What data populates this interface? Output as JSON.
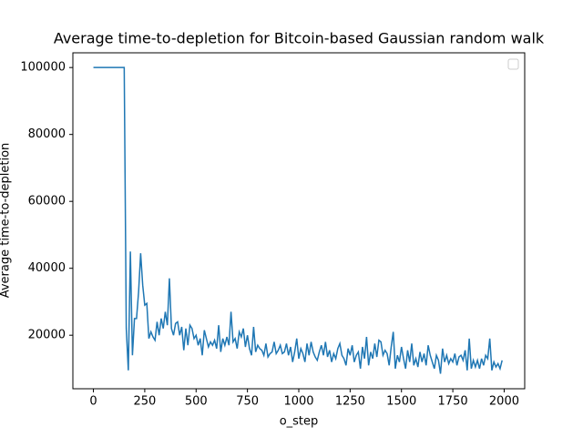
{
  "chart_data": {
    "type": "line",
    "title": "Average time-to-depletion for Bitcoin-based Gaussian random walk",
    "x_label": "o_step",
    "y_label": "Average time-to-depletion",
    "x": [
      0,
      10,
      20,
      30,
      40,
      50,
      60,
      70,
      80,
      90,
      100,
      110,
      120,
      130,
      140,
      150,
      160,
      170,
      180,
      190,
      200,
      210,
      220,
      230,
      240,
      250,
      260,
      270,
      280,
      290,
      300,
      310,
      320,
      330,
      340,
      350,
      360,
      370,
      380,
      390,
      400,
      410,
      420,
      430,
      440,
      450,
      460,
      470,
      480,
      490,
      500,
      510,
      520,
      530,
      540,
      550,
      560,
      570,
      580,
      590,
      600,
      610,
      620,
      630,
      640,
      650,
      660,
      670,
      680,
      690,
      700,
      710,
      720,
      730,
      740,
      750,
      760,
      770,
      780,
      790,
      800,
      810,
      820,
      830,
      840,
      850,
      860,
      870,
      880,
      890,
      900,
      910,
      920,
      930,
      940,
      950,
      960,
      970,
      980,
      990,
      1000,
      1010,
      1020,
      1030,
      1040,
      1050,
      1060,
      1070,
      1080,
      1090,
      1100,
      1110,
      1120,
      1130,
      1140,
      1150,
      1160,
      1170,
      1180,
      1190,
      1200,
      1210,
      1220,
      1230,
      1240,
      1250,
      1260,
      1270,
      1280,
      1290,
      1300,
      1310,
      1320,
      1330,
      1340,
      1350,
      1360,
      1370,
      1380,
      1390,
      1400,
      1410,
      1420,
      1430,
      1440,
      1450,
      1460,
      1470,
      1480,
      1490,
      1500,
      1510,
      1520,
      1530,
      1540,
      1550,
      1560,
      1570,
      1580,
      1590,
      1600,
      1610,
      1620,
      1630,
      1640,
      1650,
      1660,
      1670,
      1680,
      1690,
      1700,
      1710,
      1720,
      1730,
      1740,
      1750,
      1760,
      1770,
      1780,
      1790,
      1800,
      1810,
      1820,
      1830,
      1840,
      1850,
      1860,
      1870,
      1880,
      1890,
      1900,
      1910,
      1920,
      1930,
      1940,
      1950,
      1960,
      1970,
      1980,
      1990
    ],
    "series": [
      {
        "color": "#1f77b4",
        "values": [
          100000,
          100000,
          100000,
          100000,
          100000,
          100000,
          100000,
          100000,
          100000,
          100000,
          100000,
          100000,
          100000,
          100000,
          100000,
          100000,
          22000,
          9500,
          45000,
          14000,
          25000,
          25000,
          33000,
          44500,
          35000,
          29000,
          29500,
          19000,
          21000,
          19500,
          18500,
          24000,
          20000,
          25000,
          22000,
          27000,
          23000,
          37000,
          22000,
          20000,
          23500,
          24000,
          20000,
          22500,
          15500,
          22000,
          17000,
          23000,
          22000,
          19000,
          20000,
          17000,
          19000,
          14000,
          21500,
          19000,
          16500,
          18000,
          17000,
          18500,
          16000,
          23000,
          15000,
          19000,
          17000,
          19500,
          17000,
          27000,
          18000,
          19000,
          16000,
          21000,
          19500,
          22000,
          16500,
          20000,
          16000,
          14000,
          22500,
          15000,
          17000,
          16000,
          15500,
          14000,
          17500,
          13500,
          14500,
          15000,
          18000,
          14500,
          15500,
          17000,
          14500,
          15000,
          17500,
          14000,
          16500,
          12000,
          15000,
          19000,
          13000,
          16000,
          14500,
          12000,
          17500,
          14000,
          18000,
          15000,
          13500,
          12500,
          15000,
          17000,
          14000,
          18000,
          13500,
          15500,
          12000,
          14500,
          13000,
          16000,
          17500,
          14000,
          13000,
          11000,
          16000,
          14000,
          17000,
          12000,
          14000,
          15000,
          10000,
          16500,
          13000,
          19500,
          11000,
          15000,
          13000,
          17500,
          13500,
          18500,
          18000,
          14000,
          15500,
          14500,
          11000,
          16500,
          21000,
          10000,
          14000,
          12000,
          16500,
          13000,
          10000,
          15500,
          12000,
          17500,
          11000,
          13000,
          10500,
          15000,
          12000,
          14500,
          11000,
          17000,
          14000,
          12000,
          10000,
          14000,
          12500,
          8500,
          16000,
          12000,
          14000,
          11500,
          13000,
          12000,
          14500,
          11000,
          13500,
          14000,
          12500,
          15500,
          9500,
          19000,
          10000,
          12500,
          10500,
          12500,
          10000,
          13000,
          11000,
          14000,
          13000,
          19000,
          9500,
          12000,
          10500,
          11500,
          10000,
          12500
        ]
      }
    ],
    "xlim": [
      -100,
      2100
    ],
    "ylim": [
      4000,
      104400
    ],
    "xticks": [
      0,
      250,
      500,
      750,
      1000,
      1250,
      1500,
      1750,
      2000
    ],
    "yticks": [
      20000,
      40000,
      60000,
      80000,
      100000
    ]
  }
}
